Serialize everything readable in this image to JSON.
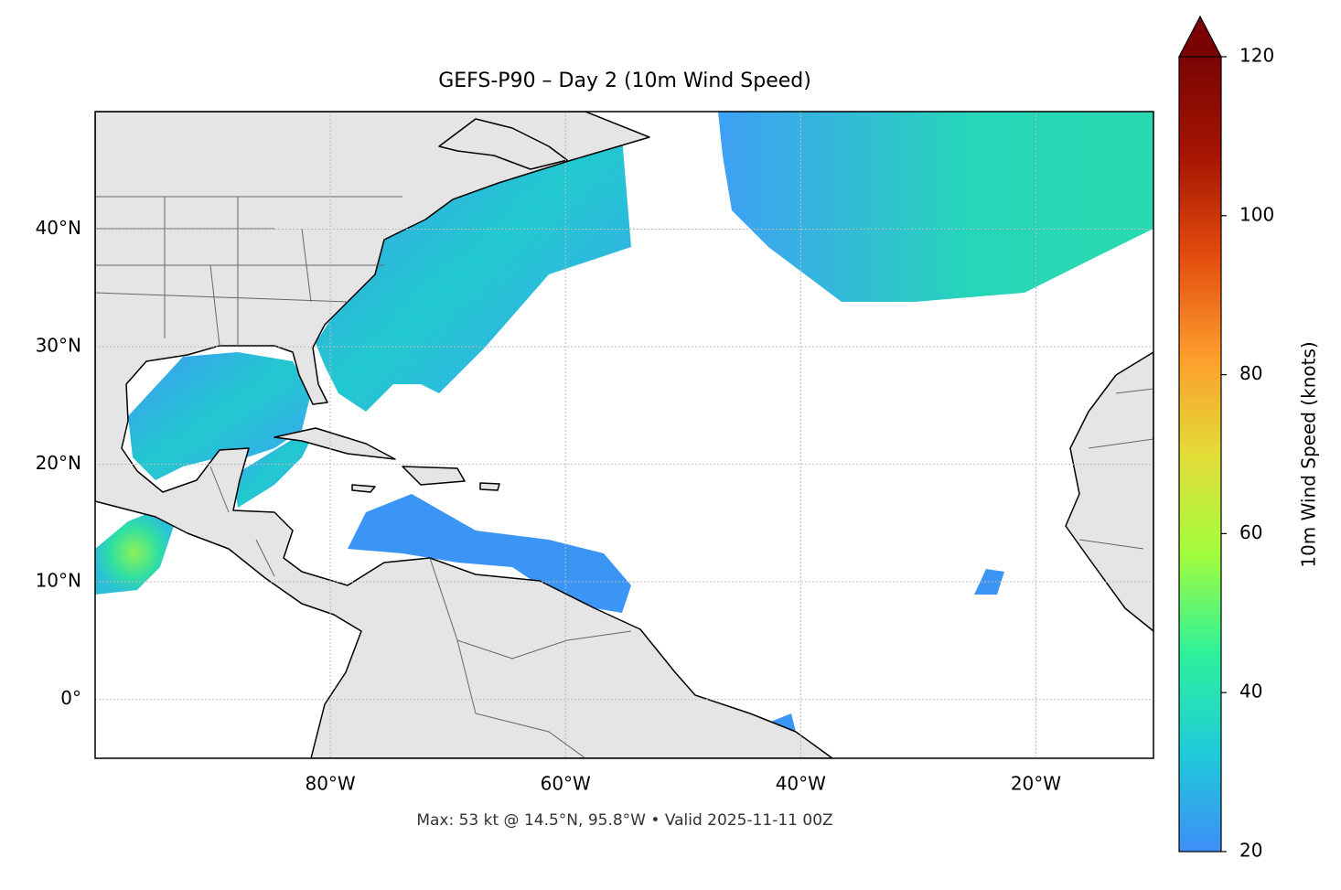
{
  "title": "GEFS-P90 – Day 2 (10m Wind Speed)",
  "footnote": "Max: 53 kt @ 14.5°N, 95.8°W • Valid 2025-11-11 00Z",
  "map": {
    "xlim": [
      -100,
      -10
    ],
    "ylim": [
      -5,
      50
    ],
    "xticks": [
      {
        "value": -80,
        "label": "80°W"
      },
      {
        "value": -60,
        "label": "60°W"
      },
      {
        "value": -40,
        "label": "40°W"
      },
      {
        "value": -20,
        "label": "20°W"
      }
    ],
    "yticks": [
      {
        "value": 0,
        "label": "0°"
      },
      {
        "value": 10,
        "label": "10°N"
      },
      {
        "value": 20,
        "label": "20°N"
      },
      {
        "value": 30,
        "label": "30°N"
      },
      {
        "value": 40,
        "label": "40°N"
      }
    ],
    "grid": true
  },
  "colorbar": {
    "label": "10m Wind Speed (knots)",
    "lim": [
      20,
      120
    ],
    "ticks": [
      20,
      40,
      60,
      80,
      100,
      120
    ],
    "extend": "max",
    "colors": [
      "#3e8ef7",
      "#1ecbd9",
      "#2ef19a",
      "#a3fd3c",
      "#e3dc37",
      "#fe9b2d",
      "#e24c0d",
      "#a61502",
      "#7a0403"
    ]
  }
}
